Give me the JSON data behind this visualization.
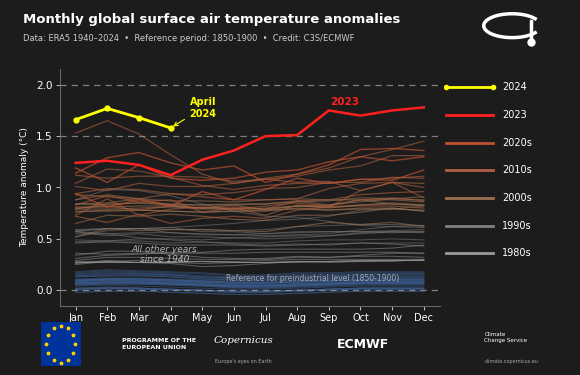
{
  "title": "Monthly global surface air temperature anomalies",
  "subtitle": "Data: ERA5 1940–2024  •  Reference period: 1850-1900  •  Credit: C3S/ECMWF",
  "bg_color": "#1c1c1c",
  "plot_bg": "#1c1c1c",
  "ylabel": "Temperature anomaly (°C)",
  "months": [
    "Jan",
    "Feb",
    "Mar",
    "Apr",
    "May",
    "Jun",
    "Jul",
    "Aug",
    "Sep",
    "Oct",
    "Nov",
    "Dec"
  ],
  "ylim": [
    -0.15,
    2.15
  ],
  "yticks": [
    0.0,
    0.5,
    1.0,
    1.5,
    2.0
  ],
  "dashed_lines": [
    0.0,
    1.5,
    2.0
  ],
  "year_2024": [
    1.66,
    1.77,
    1.68,
    1.58,
    null,
    null,
    null,
    null,
    null,
    null,
    null,
    null
  ],
  "year_2023": [
    1.24,
    1.26,
    1.22,
    1.12,
    1.27,
    1.36,
    1.5,
    1.51,
    1.75,
    1.7,
    1.75,
    1.78
  ],
  "years_2020s": {
    "2020": [
      1.14,
      1.29,
      1.34,
      1.24,
      1.17,
      1.21,
      1.05,
      1.13,
      1.22,
      1.37,
      1.38,
      1.36
    ],
    "2021": [
      0.94,
      0.81,
      0.88,
      0.82,
      0.96,
      0.88,
      0.98,
      1.09,
      1.04,
      1.08,
      1.07,
      1.17
    ],
    "2022": [
      1.19,
      1.05,
      1.22,
      1.09,
      1.07,
      1.09,
      1.15,
      1.17,
      1.25,
      1.3,
      1.26,
      1.3
    ]
  },
  "years_2010s": {
    "2010": [
      0.83,
      0.92,
      0.86,
      0.88,
      0.76,
      0.8,
      0.73,
      0.83,
      0.81,
      0.97,
      1.05,
      0.9
    ],
    "2011": [
      0.72,
      0.66,
      0.74,
      0.65,
      0.7,
      0.72,
      0.7,
      0.78,
      0.81,
      0.82,
      0.82,
      0.8
    ],
    "2012": [
      0.73,
      0.89,
      0.73,
      0.79,
      0.81,
      0.79,
      0.82,
      0.85,
      0.82,
      0.88,
      0.9,
      0.87
    ],
    "2013": [
      0.8,
      0.82,
      0.78,
      0.82,
      0.8,
      0.81,
      0.79,
      0.87,
      0.88,
      0.93,
      0.95,
      0.96
    ],
    "2014": [
      0.93,
      0.91,
      0.89,
      0.94,
      0.91,
      0.88,
      0.88,
      0.89,
      0.99,
      1.04,
      1.05,
      1.0
    ],
    "2015": [
      1.01,
      0.97,
      1.04,
      1.01,
      1.01,
      1.04,
      1.09,
      1.13,
      1.19,
      1.3,
      1.37,
      1.45
    ],
    "2016": [
      1.53,
      1.65,
      1.52,
      1.32,
      1.13,
      1.04,
      1.08,
      1.05,
      1.06,
      0.97,
      1.05,
      1.04
    ],
    "2017": [
      1.04,
      1.18,
      1.16,
      1.1,
      1.02,
      0.98,
      1.02,
      1.04,
      1.04,
      1.08,
      1.09,
      1.11
    ],
    "2018": [
      0.94,
      0.99,
      0.98,
      0.94,
      0.93,
      0.95,
      0.99,
      1.0,
      1.05,
      1.05,
      1.1,
      1.09
    ],
    "2019": [
      1.12,
      1.09,
      1.11,
      1.11,
      1.1,
      1.06,
      1.08,
      1.11,
      1.17,
      1.21,
      1.31,
      1.31
    ]
  },
  "years_2000s": {
    "2000": [
      0.52,
      0.6,
      0.58,
      0.59,
      0.59,
      0.58,
      0.57,
      0.62,
      0.66,
      0.64,
      0.66,
      0.62
    ],
    "2001": [
      0.65,
      0.73,
      0.72,
      0.74,
      0.72,
      0.69,
      0.68,
      0.73,
      0.73,
      0.76,
      0.8,
      0.77
    ],
    "2002": [
      0.79,
      0.84,
      0.85,
      0.83,
      0.8,
      0.83,
      0.78,
      0.82,
      0.81,
      0.83,
      0.85,
      0.83
    ],
    "2003": [
      0.84,
      0.85,
      0.89,
      0.83,
      0.83,
      0.84,
      0.84,
      0.87,
      0.83,
      0.88,
      0.84,
      0.83
    ],
    "2004": [
      0.76,
      0.78,
      0.78,
      0.77,
      0.76,
      0.77,
      0.77,
      0.8,
      0.78,
      0.8,
      0.8,
      0.77
    ],
    "2005": [
      0.84,
      0.83,
      0.85,
      0.84,
      0.83,
      0.83,
      0.84,
      0.86,
      0.87,
      0.9,
      0.89,
      0.88
    ],
    "2006": [
      0.81,
      0.81,
      0.82,
      0.82,
      0.79,
      0.79,
      0.79,
      0.82,
      0.8,
      0.83,
      0.84,
      0.82
    ],
    "2007": [
      0.88,
      0.93,
      0.89,
      0.87,
      0.87,
      0.86,
      0.88,
      0.89,
      0.88,
      0.88,
      0.88,
      0.86
    ],
    "2008": [
      0.77,
      0.77,
      0.78,
      0.77,
      0.76,
      0.77,
      0.78,
      0.79,
      0.78,
      0.79,
      0.79,
      0.78
    ],
    "2009": [
      0.79,
      0.79,
      0.8,
      0.81,
      0.8,
      0.79,
      0.8,
      0.82,
      0.83,
      0.86,
      0.89,
      0.91
    ]
  },
  "years_1990s": {
    "1990": [
      0.52,
      0.58,
      0.6,
      0.56,
      0.55,
      0.54,
      0.53,
      0.54,
      0.55,
      0.59,
      0.62,
      0.63
    ],
    "1991": [
      0.58,
      0.6,
      0.6,
      0.61,
      0.57,
      0.57,
      0.55,
      0.56,
      0.57,
      0.57,
      0.58,
      0.59
    ],
    "1992": [
      0.55,
      0.55,
      0.51,
      0.49,
      0.47,
      0.45,
      0.44,
      0.45,
      0.44,
      0.46,
      0.46,
      0.46
    ],
    "1993": [
      0.47,
      0.48,
      0.48,
      0.46,
      0.47,
      0.46,
      0.46,
      0.48,
      0.49,
      0.49,
      0.5,
      0.49
    ],
    "1994": [
      0.49,
      0.48,
      0.5,
      0.5,
      0.49,
      0.51,
      0.5,
      0.51,
      0.53,
      0.56,
      0.56,
      0.57
    ],
    "1995": [
      0.59,
      0.6,
      0.6,
      0.59,
      0.59,
      0.58,
      0.59,
      0.62,
      0.63,
      0.64,
      0.64,
      0.63
    ],
    "1996": [
      0.57,
      0.55,
      0.56,
      0.56,
      0.54,
      0.54,
      0.55,
      0.57,
      0.57,
      0.57,
      0.57,
      0.56
    ],
    "1997": [
      0.57,
      0.6,
      0.6,
      0.61,
      0.63,
      0.65,
      0.68,
      0.69,
      0.72,
      0.78,
      0.79,
      0.82
    ],
    "1998": [
      0.88,
      0.98,
      0.97,
      0.92,
      0.84,
      0.77,
      0.72,
      0.71,
      0.67,
      0.63,
      0.62,
      0.61
    ],
    "1999": [
      0.57,
      0.53,
      0.55,
      0.52,
      0.52,
      0.51,
      0.52,
      0.53,
      0.53,
      0.55,
      0.57,
      0.57
    ]
  },
  "years_1980s": {
    "1980": [
      0.26,
      0.29,
      0.27,
      0.26,
      0.23,
      0.24,
      0.26,
      0.28,
      0.27,
      0.28,
      0.29,
      0.29
    ],
    "1981": [
      0.29,
      0.32,
      0.32,
      0.31,
      0.3,
      0.3,
      0.31,
      0.33,
      0.32,
      0.33,
      0.33,
      0.32
    ],
    "1982": [
      0.25,
      0.28,
      0.29,
      0.28,
      0.28,
      0.28,
      0.29,
      0.3,
      0.3,
      0.3,
      0.3,
      0.3
    ],
    "1983": [
      0.34,
      0.38,
      0.38,
      0.35,
      0.32,
      0.31,
      0.3,
      0.32,
      0.32,
      0.34,
      0.36,
      0.36
    ],
    "1984": [
      0.27,
      0.27,
      0.27,
      0.27,
      0.28,
      0.27,
      0.27,
      0.27,
      0.28,
      0.29,
      0.29,
      0.29
    ],
    "1985": [
      0.27,
      0.27,
      0.27,
      0.27,
      0.28,
      0.27,
      0.27,
      0.28,
      0.28,
      0.29,
      0.29,
      0.29
    ],
    "1986": [
      0.28,
      0.28,
      0.27,
      0.27,
      0.26,
      0.27,
      0.27,
      0.28,
      0.28,
      0.28,
      0.28,
      0.3
    ],
    "1987": [
      0.31,
      0.34,
      0.35,
      0.37,
      0.37,
      0.39,
      0.4,
      0.4,
      0.4,
      0.4,
      0.41,
      0.44
    ],
    "1988": [
      0.46,
      0.47,
      0.46,
      0.44,
      0.44,
      0.44,
      0.43,
      0.44,
      0.45,
      0.46,
      0.45,
      0.43
    ],
    "1989": [
      0.36,
      0.35,
      0.36,
      0.36,
      0.36,
      0.36,
      0.37,
      0.37,
      0.37,
      0.37,
      0.37,
      0.36
    ]
  },
  "years_pre1980": {
    "1940": [
      0.08,
      0.1,
      0.08,
      0.07,
      0.05,
      0.03,
      0.02,
      0.04,
      0.05,
      0.07,
      0.08,
      0.08
    ],
    "1941": [
      0.15,
      0.17,
      0.16,
      0.15,
      0.13,
      0.12,
      0.12,
      0.14,
      0.14,
      0.15,
      0.16,
      0.16
    ],
    "1942": [
      0.1,
      0.11,
      0.1,
      0.09,
      0.08,
      0.06,
      0.06,
      0.07,
      0.08,
      0.09,
      0.09,
      0.09
    ],
    "1943": [
      0.09,
      0.1,
      0.1,
      0.09,
      0.08,
      0.07,
      0.07,
      0.08,
      0.09,
      0.1,
      0.1,
      0.1
    ],
    "1944": [
      0.13,
      0.14,
      0.14,
      0.13,
      0.11,
      0.1,
      0.1,
      0.12,
      0.12,
      0.13,
      0.13,
      0.13
    ],
    "1945": [
      0.09,
      0.1,
      0.09,
      0.08,
      0.07,
      0.05,
      0.05,
      0.06,
      0.07,
      0.08,
      0.08,
      0.08
    ],
    "1946": [
      0.07,
      0.08,
      0.07,
      0.06,
      0.05,
      0.03,
      0.03,
      0.04,
      0.05,
      0.06,
      0.06,
      0.06
    ],
    "1947": [
      0.07,
      0.08,
      0.08,
      0.07,
      0.06,
      0.04,
      0.04,
      0.05,
      0.06,
      0.07,
      0.07,
      0.07
    ],
    "1948": [
      0.08,
      0.09,
      0.09,
      0.08,
      0.07,
      0.05,
      0.05,
      0.06,
      0.07,
      0.08,
      0.08,
      0.08
    ],
    "1949": [
      0.05,
      0.06,
      0.06,
      0.05,
      0.04,
      0.02,
      0.02,
      0.03,
      0.04,
      0.05,
      0.05,
      0.05
    ],
    "1950": [
      0.01,
      0.02,
      0.02,
      0.01,
      0.0,
      -0.01,
      -0.01,
      0.0,
      0.01,
      0.02,
      0.02,
      0.02
    ],
    "1951": [
      0.09,
      0.1,
      0.1,
      0.09,
      0.08,
      0.07,
      0.07,
      0.08,
      0.09,
      0.1,
      0.1,
      0.1
    ],
    "1952": [
      0.1,
      0.11,
      0.11,
      0.1,
      0.09,
      0.07,
      0.07,
      0.08,
      0.09,
      0.1,
      0.1,
      0.1
    ],
    "1953": [
      0.11,
      0.12,
      0.12,
      0.11,
      0.1,
      0.09,
      0.09,
      0.1,
      0.11,
      0.12,
      0.12,
      0.12
    ],
    "1954": [
      0.02,
      0.03,
      0.02,
      0.01,
      0.0,
      -0.01,
      -0.01,
      0.0,
      0.01,
      0.02,
      0.02,
      0.02
    ],
    "1955": [
      0.01,
      0.02,
      0.01,
      0.0,
      -0.01,
      -0.02,
      -0.02,
      -0.01,
      0.0,
      0.01,
      0.01,
      0.01
    ],
    "1956": [
      -0.02,
      -0.01,
      -0.01,
      -0.02,
      -0.03,
      -0.04,
      -0.04,
      -0.03,
      -0.02,
      -0.01,
      -0.01,
      -0.01
    ],
    "1957": [
      0.09,
      0.11,
      0.11,
      0.1,
      0.09,
      0.08,
      0.08,
      0.09,
      0.1,
      0.11,
      0.11,
      0.11
    ],
    "1958": [
      0.13,
      0.14,
      0.14,
      0.13,
      0.11,
      0.1,
      0.1,
      0.11,
      0.12,
      0.13,
      0.13,
      0.13
    ],
    "1959": [
      0.1,
      0.11,
      0.11,
      0.1,
      0.09,
      0.07,
      0.07,
      0.08,
      0.09,
      0.1,
      0.1,
      0.1
    ],
    "1960": [
      0.05,
      0.06,
      0.06,
      0.05,
      0.04,
      0.03,
      0.03,
      0.04,
      0.05,
      0.06,
      0.06,
      0.06
    ],
    "1961": [
      0.09,
      0.1,
      0.1,
      0.09,
      0.08,
      0.07,
      0.07,
      0.08,
      0.09,
      0.1,
      0.1,
      0.1
    ],
    "1962": [
      0.07,
      0.08,
      0.08,
      0.07,
      0.06,
      0.05,
      0.05,
      0.06,
      0.07,
      0.08,
      0.08,
      0.08
    ],
    "1963": [
      0.07,
      0.08,
      0.07,
      0.07,
      0.05,
      0.04,
      0.04,
      0.05,
      0.06,
      0.07,
      0.07,
      0.07
    ],
    "1964": [
      -0.02,
      -0.01,
      -0.01,
      -0.02,
      -0.03,
      -0.04,
      -0.04,
      -0.03,
      -0.02,
      -0.01,
      -0.01,
      -0.01
    ],
    "1965": [
      0.0,
      0.01,
      0.01,
      0.0,
      -0.01,
      -0.02,
      -0.02,
      -0.01,
      0.0,
      0.01,
      0.01,
      0.01
    ],
    "1966": [
      0.06,
      0.07,
      0.07,
      0.06,
      0.05,
      0.04,
      0.04,
      0.05,
      0.06,
      0.07,
      0.07,
      0.07
    ],
    "1967": [
      0.06,
      0.07,
      0.07,
      0.06,
      0.05,
      0.04,
      0.04,
      0.05,
      0.06,
      0.07,
      0.07,
      0.07
    ],
    "1968": [
      0.04,
      0.05,
      0.04,
      0.03,
      0.02,
      0.01,
      0.01,
      0.02,
      0.03,
      0.04,
      0.04,
      0.04
    ],
    "1969": [
      0.14,
      0.16,
      0.16,
      0.15,
      0.13,
      0.12,
      0.12,
      0.14,
      0.14,
      0.15,
      0.15,
      0.15
    ],
    "1970": [
      0.1,
      0.11,
      0.11,
      0.1,
      0.09,
      0.08,
      0.08,
      0.09,
      0.1,
      0.11,
      0.11,
      0.11
    ],
    "1971": [
      0.01,
      0.02,
      0.02,
      0.01,
      0.0,
      -0.01,
      -0.01,
      0.0,
      0.01,
      0.02,
      0.02,
      0.02
    ],
    "1972": [
      0.07,
      0.08,
      0.08,
      0.07,
      0.06,
      0.05,
      0.05,
      0.06,
      0.07,
      0.08,
      0.08,
      0.08
    ],
    "1973": [
      0.16,
      0.18,
      0.17,
      0.16,
      0.14,
      0.13,
      0.13,
      0.15,
      0.15,
      0.16,
      0.16,
      0.16
    ],
    "1974": [
      0.01,
      0.02,
      0.02,
      0.01,
      0.0,
      -0.01,
      -0.01,
      0.0,
      0.01,
      0.02,
      0.02,
      0.02
    ],
    "1975": [
      0.06,
      0.07,
      0.07,
      0.06,
      0.05,
      0.04,
      0.04,
      0.05,
      0.06,
      0.07,
      0.07,
      0.07
    ],
    "1976": [
      0.02,
      0.03,
      0.02,
      0.01,
      0.0,
      -0.01,
      -0.01,
      0.0,
      0.01,
      0.02,
      0.02,
      0.02
    ],
    "1977": [
      0.17,
      0.19,
      0.18,
      0.17,
      0.16,
      0.14,
      0.14,
      0.16,
      0.16,
      0.17,
      0.17,
      0.17
    ],
    "1978": [
      0.14,
      0.15,
      0.15,
      0.14,
      0.12,
      0.11,
      0.11,
      0.12,
      0.13,
      0.14,
      0.14,
      0.14
    ],
    "1979": [
      0.18,
      0.2,
      0.19,
      0.18,
      0.17,
      0.15,
      0.15,
      0.17,
      0.17,
      0.18,
      0.18,
      0.18
    ]
  },
  "color_2024": "#ffff00",
  "color_2023": "#ff2020",
  "color_2020s": "#c05030",
  "color_2010s": "#b06040",
  "color_2000s": "#997050",
  "color_1990s": "#808080",
  "color_1980s": "#999999",
  "color_pre1980": "#3a5a8a",
  "april_2024_label": "April\n2024",
  "label_2023": "2023",
  "annotation_all_years": "All other years\nsince 1940",
  "annotation_ref": "Reference for preindustrial level (1850-1900)",
  "legend_labels": [
    "2024",
    "2023",
    "2020s",
    "2010s",
    "2000s",
    "1990s",
    "1980s"
  ],
  "footer_bg": "#222222"
}
